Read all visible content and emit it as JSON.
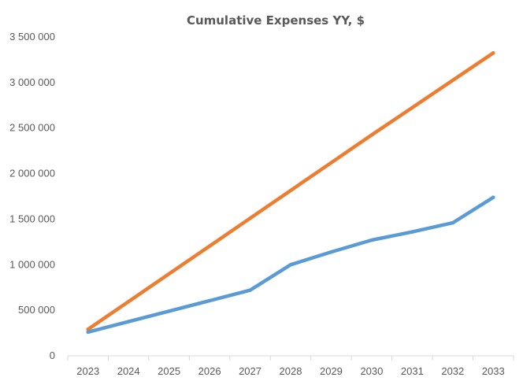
{
  "chart_data": {
    "type": "line",
    "title": "Cumulative Expenses YY, $",
    "xlabel": "",
    "ylabel": "",
    "categories": [
      "2023",
      "2024",
      "2025",
      "2026",
      "2027",
      "2028",
      "2029",
      "2030",
      "2031",
      "2032",
      "2033"
    ],
    "ylim": [
      0,
      3500000
    ],
    "yticks": [
      0,
      500000,
      1000000,
      1500000,
      2000000,
      2500000,
      3000000,
      3500000
    ],
    "ytick_labels": [
      "0",
      "500 000",
      "1 000 000",
      "1 500 000",
      "2 000 000",
      "2 500 000",
      "3 000 000",
      "3 500 000"
    ],
    "grid": false,
    "legend": "none",
    "series": [
      {
        "color": "#ED7D31",
        "values": [
          290000,
          595000,
          900000,
          1205000,
          1510000,
          1815000,
          2120000,
          2425000,
          2725000,
          3025000,
          3325000
        ]
      },
      {
        "color": "#5B9BD5",
        "values": [
          260000,
          375000,
          490000,
          605000,
          720000,
          1000000,
          1140000,
          1270000,
          1360000,
          1460000,
          1740000
        ]
      }
    ]
  }
}
